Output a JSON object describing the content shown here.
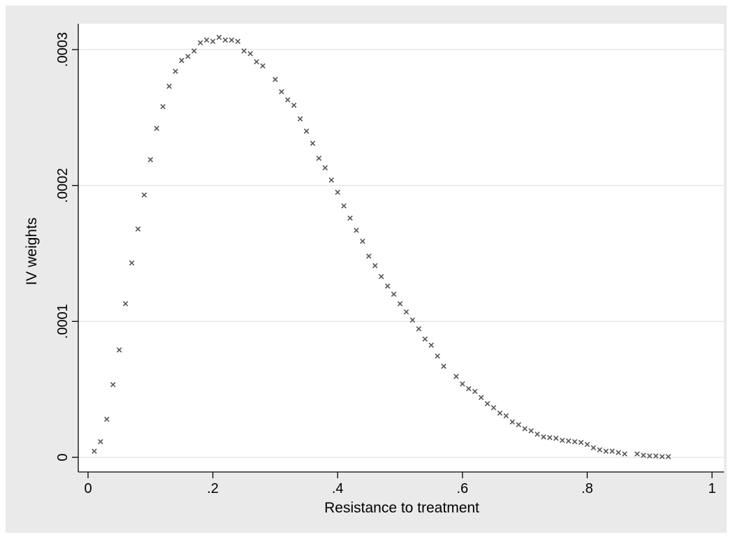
{
  "chart_data": {
    "type": "scatter",
    "title": "",
    "xlabel": "Resistance to treatment",
    "ylabel": "IV weights",
    "xlim": [
      0,
      1
    ],
    "ylim": [
      0,
      0.0003
    ],
    "x_ticks": [
      "0",
      ".2",
      ".4",
      ".6",
      ".8",
      "1"
    ],
    "x_tick_values": [
      0,
      0.2,
      0.4,
      0.6,
      0.8,
      1
    ],
    "y_ticks": [
      "0",
      ".0001",
      ".0002",
      ".0003"
    ],
    "y_tick_values": [
      0,
      0.0001,
      0.0002,
      0.0003
    ],
    "grid": "horizontal",
    "legend": "none",
    "colors": {
      "background": "#eaeaea",
      "plot_area": "#ffffff",
      "marker": "#555555",
      "grid": "#e6e6e6"
    },
    "marker": "x",
    "points": [
      [
        0.01,
        4.5e-06
      ],
      [
        0.02,
        1.15e-05
      ],
      [
        0.03,
        2.8e-05
      ],
      [
        0.04,
        5.35e-05
      ],
      [
        0.05,
        7.9e-05
      ],
      [
        0.06,
        0.000113
      ],
      [
        0.07,
        0.000143
      ],
      [
        0.08,
        0.000168
      ],
      [
        0.09,
        0.000193
      ],
      [
        0.1,
        0.000219
      ],
      [
        0.11,
        0.000242
      ],
      [
        0.12,
        0.000258
      ],
      [
        0.13,
        0.000273
      ],
      [
        0.14,
        0.000284
      ],
      [
        0.15,
        0.000292
      ],
      [
        0.16,
        0.000295
      ],
      [
        0.17,
        0.000299
      ],
      [
        0.18,
        0.000305
      ],
      [
        0.19,
        0.000307
      ],
      [
        0.2,
        0.000306
      ],
      [
        0.21,
        0.000309
      ],
      [
        0.22,
        0.000307
      ],
      [
        0.23,
        0.000307
      ],
      [
        0.24,
        0.000306
      ],
      [
        0.25,
        0.000299
      ],
      [
        0.26,
        0.000297
      ],
      [
        0.27,
        0.000291
      ],
      [
        0.28,
        0.000288
      ],
      [
        0.3,
        0.000278
      ],
      [
        0.31,
        0.000269
      ],
      [
        0.32,
        0.000263
      ],
      [
        0.33,
        0.000259
      ],
      [
        0.34,
        0.000249
      ],
      [
        0.35,
        0.00024
      ],
      [
        0.36,
        0.000231
      ],
      [
        0.37,
        0.00022
      ],
      [
        0.38,
        0.000213
      ],
      [
        0.39,
        0.000204
      ],
      [
        0.4,
        0.000195
      ],
      [
        0.41,
        0.000185
      ],
      [
        0.42,
        0.000176
      ],
      [
        0.43,
        0.000167
      ],
      [
        0.44,
        0.000159
      ],
      [
        0.45,
        0.000148
      ],
      [
        0.46,
        0.000141
      ],
      [
        0.47,
        0.000133
      ],
      [
        0.48,
        0.000126
      ],
      [
        0.49,
        0.00012
      ],
      [
        0.5,
        0.000113
      ],
      [
        0.51,
        0.000107
      ],
      [
        0.52,
        0.000101
      ],
      [
        0.53,
        9.45e-05
      ],
      [
        0.54,
        8.7e-05
      ],
      [
        0.55,
        8.25e-05
      ],
      [
        0.56,
        7.45e-05
      ],
      [
        0.57,
        6.7e-05
      ],
      [
        0.59,
        5.95e-05
      ],
      [
        0.6,
        5.4e-05
      ],
      [
        0.61,
        5.05e-05
      ],
      [
        0.62,
        4.85e-05
      ],
      [
        0.63,
        4.4e-05
      ],
      [
        0.64,
        3.95e-05
      ],
      [
        0.65,
        3.65e-05
      ],
      [
        0.66,
        3.25e-05
      ],
      [
        0.67,
        3.05e-05
      ],
      [
        0.68,
        2.6e-05
      ],
      [
        0.69,
        2.4e-05
      ],
      [
        0.7,
        2.1e-05
      ],
      [
        0.71,
        1.95e-05
      ],
      [
        0.72,
        1.7e-05
      ],
      [
        0.73,
        1.5e-05
      ],
      [
        0.74,
        1.45e-05
      ],
      [
        0.75,
        1.4e-05
      ],
      [
        0.76,
        1.25e-05
      ],
      [
        0.77,
        1.2e-05
      ],
      [
        0.78,
        1.15e-05
      ],
      [
        0.79,
        1.1e-05
      ],
      [
        0.8,
        9.5e-06
      ],
      [
        0.81,
        7e-06
      ],
      [
        0.82,
        5.5e-06
      ],
      [
        0.83,
        4.5e-06
      ],
      [
        0.84,
        4.5e-06
      ],
      [
        0.85,
        3.5e-06
      ],
      [
        0.86,
        2.5e-06
      ],
      [
        0.88,
        2.5e-06
      ],
      [
        0.89,
        1.5e-06
      ],
      [
        0.9,
        1e-06
      ],
      [
        0.91,
        1e-06
      ],
      [
        0.92,
        5e-07
      ],
      [
        0.93,
        5e-07
      ]
    ]
  }
}
